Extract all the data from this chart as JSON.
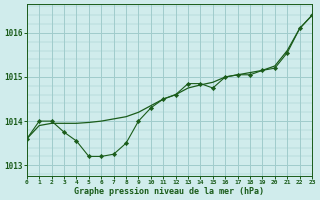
{
  "title": "Graphe pression niveau de la mer (hPa)",
  "background_color": "#d0ecec",
  "grid_color": "#a0cccc",
  "line_color": "#1a5c1a",
  "x_labels": [
    "0",
    "1",
    "2",
    "3",
    "4",
    "5",
    "6",
    "7",
    "8",
    "9",
    "10",
    "11",
    "12",
    "13",
    "14",
    "15",
    "16",
    "17",
    "18",
    "19",
    "20",
    "21",
    "22",
    "23"
  ],
  "xlim": [
    0,
    23
  ],
  "ylim": [
    1012.75,
    1016.65
  ],
  "yticks": [
    1013,
    1014,
    1015,
    1016
  ],
  "marked_x": [
    0,
    1,
    2,
    3,
    4,
    5,
    6,
    7,
    8,
    9,
    10,
    11,
    12,
    13,
    14,
    15,
    16,
    17,
    18,
    19,
    20,
    21,
    22,
    23
  ],
  "marked_y": [
    1013.6,
    1014.0,
    1014.0,
    1013.75,
    1013.55,
    1013.2,
    1013.2,
    1013.25,
    1013.5,
    1014.0,
    1014.3,
    1014.5,
    1014.6,
    1014.85,
    1014.85,
    1014.75,
    1015.0,
    1015.05,
    1015.05,
    1015.15,
    1015.2,
    1015.55,
    1016.1,
    1016.4
  ],
  "smooth_x": [
    0,
    1,
    2,
    3,
    4,
    5,
    6,
    7,
    8,
    9,
    10,
    11,
    12,
    13,
    14,
    15,
    16,
    17,
    18,
    19,
    20,
    21,
    22,
    23
  ],
  "smooth_y": [
    1013.6,
    1013.9,
    1013.95,
    1013.95,
    1013.95,
    1013.97,
    1014.0,
    1014.05,
    1014.1,
    1014.2,
    1014.35,
    1014.5,
    1014.6,
    1014.75,
    1014.82,
    1014.88,
    1015.0,
    1015.05,
    1015.1,
    1015.15,
    1015.25,
    1015.6,
    1016.1,
    1016.4
  ]
}
